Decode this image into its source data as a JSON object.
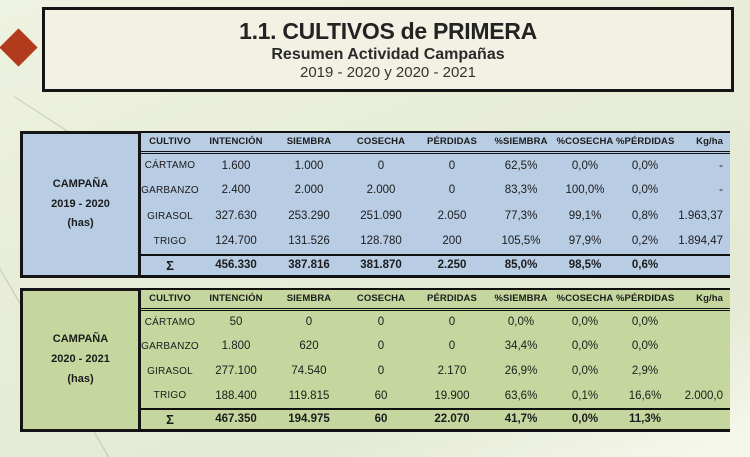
{
  "slide": {
    "title": "1.1. CULTIVOS de PRIMERA",
    "subtitle": "Resumen Actividad Campañas",
    "period_line": "2019 - 2020 y 2020 - 2021"
  },
  "colors": {
    "accent-red": "#b23a1d",
    "campaign1-bg": "#b8cce4",
    "campaign2-bg": "#c5d79e",
    "panel-bg": "#f2f1e3",
    "line-color": "#111111"
  },
  "tables": [
    {
      "campaign_label": [
        "CAMPAÑA",
        "2019 - 2020",
        "(has)"
      ],
      "columns": [
        "CULTIVO",
        "INTENCIÓN",
        "SIEMBRA",
        "COSECHA",
        "PÉRDIDAS",
        "%SIEMBRA",
        "%COSECHA",
        "%PÉRDIDAS",
        "Kg/ha"
      ],
      "rows": [
        [
          "CÁRTAMO",
          "1.600",
          "1.000",
          "0",
          "0",
          "62,5%",
          "0,0%",
          "0,0%",
          "-"
        ],
        [
          "GARBANZO",
          "2.400",
          "2.000",
          "2.000",
          "0",
          "83,3%",
          "100,0%",
          "0,0%",
          "-"
        ],
        [
          "GIRASOL",
          "327.630",
          "253.290",
          "251.090",
          "2.050",
          "77,3%",
          "99,1%",
          "0,8%",
          "1.963,37"
        ],
        [
          "TRIGO",
          "124.700",
          "131.526",
          "128.780",
          "200",
          "105,5%",
          "97,9%",
          "0,2%",
          "1.894,47"
        ]
      ],
      "total_row": [
        "Σ",
        "456.330",
        "387.816",
        "381.870",
        "2.250",
        "85,0%",
        "98,5%",
        "0,6%",
        ""
      ]
    },
    {
      "campaign_label": [
        "CAMPAÑA",
        "2020 - 2021",
        "(has)"
      ],
      "columns": [
        "CULTIVO",
        "INTENCIÓN",
        "SIEMBRA",
        "COSECHA",
        "PÉRDIDAS",
        "%SIEMBRA",
        "%COSECHA",
        "%PÉRDIDAS",
        "Kg/ha"
      ],
      "rows": [
        [
          "CÁRTAMO",
          "50",
          "0",
          "0",
          "0",
          "0,0%",
          "0,0%",
          "0,0%",
          ""
        ],
        [
          "GARBANZO",
          "1.800",
          "620",
          "0",
          "0",
          "34,4%",
          "0,0%",
          "0,0%",
          ""
        ],
        [
          "GIRASOL",
          "277.100",
          "74.540",
          "0",
          "2.170",
          "26,9%",
          "0,0%",
          "2,9%",
          ""
        ],
        [
          "TRIGO",
          "188.400",
          "119.815",
          "60",
          "19.900",
          "63,6%",
          "0,1%",
          "16,6%",
          "2.000,0"
        ]
      ],
      "total_row": [
        "Σ",
        "467.350",
        "194.975",
        "60",
        "22.070",
        "41,7%",
        "0,0%",
        "11,3%",
        ""
      ]
    }
  ]
}
